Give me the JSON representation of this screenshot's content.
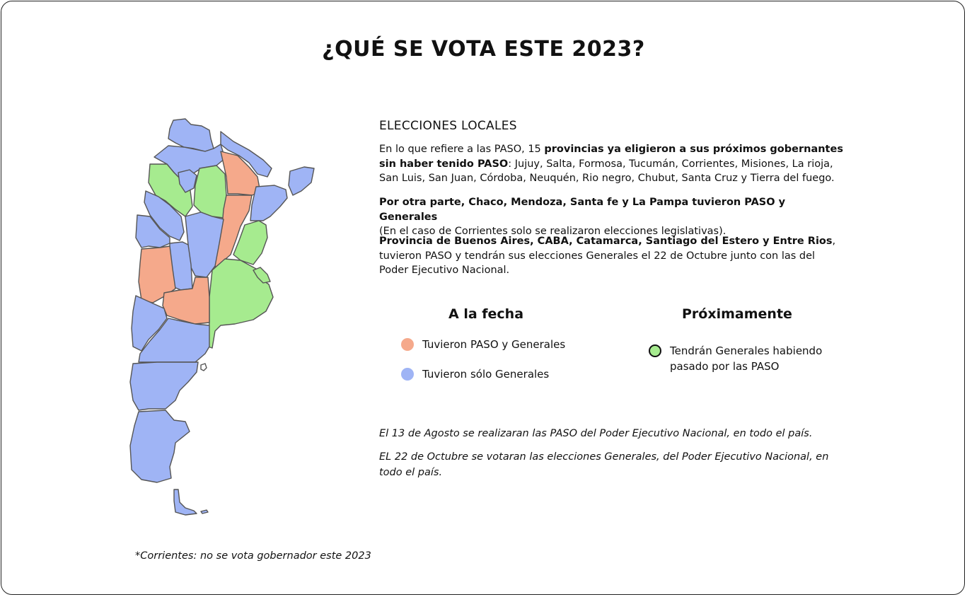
{
  "title": "¿QUÉ SE VOTA ESTE 2023?",
  "colors": {
    "paso_y_generales": "#f5a98b",
    "solo_generales": "#9fb4f5",
    "proximamente": "#a6eb8f",
    "border": "#555555"
  },
  "section_title": "ELECCIONES LOCALES",
  "paragraph1": {
    "pre": "En lo que refiere a las PASO, 15 ",
    "bold": "provincias ya eligieron a sus próximos gobernantes sin haber tenido PASO",
    "post": ": Jujuy, Salta, Formosa, Tucumán, Corrientes, Misiones, La rioja, San Luis, San Juan, Córdoba, Neuquén, Rio negro, Chubut, Santa Cruz y Tierra del fuego."
  },
  "paragraph2": {
    "bold": "Por otra parte, Chaco, Mendoza, Santa fe y La Pampa tuvieron PASO y Generales",
    "post": "(En el caso de Corrientes solo se realizaron elecciones legislativas)."
  },
  "paragraph3": {
    "bold": "Provincia de Buenos Aires, CABA, Catamarca, Santiago del Estero y Entre Rios",
    "post": ", tuvieron PASO y tendrán sus elecciones Generales el 22 de Octubre junto con las del Poder Ejecutivo Nacional."
  },
  "legend": {
    "head_left": "A la fecha",
    "head_right": "Próximamente",
    "item_paso": "Tuvieron PASO y Generales",
    "item_solo": "Tuvieron sólo Generales",
    "item_proximamente": "Tendrán Generales habiendo pasado por las PASO"
  },
  "note1": "El  13 de Agosto se realizaran las PASO del Poder Ejecutivo Nacional, en todo el país.",
  "note2": "EL 22 de Octubre se votaran las elecciones Generales, del Poder Ejecutivo Nacional, en todo el país.",
  "footnote": "*Corrientes: no se vota gobernador este 2023"
}
